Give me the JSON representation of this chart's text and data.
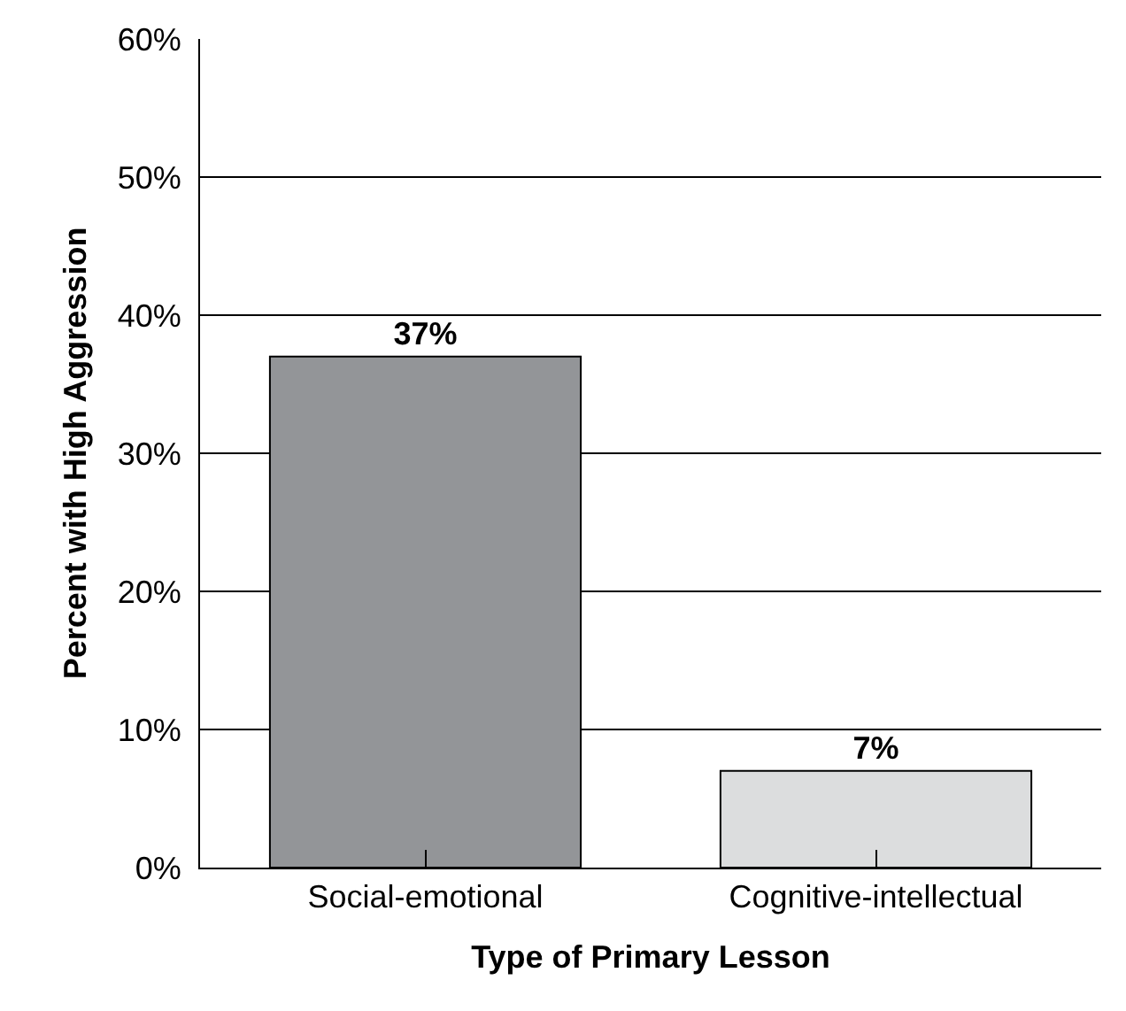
{
  "chart_data": {
    "type": "bar",
    "xlabel": "Type of Primary Lesson",
    "ylabel": "Percent with High Aggression",
    "categories": [
      "Social-emotional",
      "Cognitive-intellectual"
    ],
    "values": [
      37,
      7
    ],
    "colors": [
      "#939598",
      "#dcddde"
    ],
    "value_labels": [
      "37%",
      "7%"
    ],
    "ylim": [
      0,
      60
    ],
    "yticks": [
      {
        "value": 0,
        "label": "0%"
      },
      {
        "value": 10,
        "label": "10%"
      },
      {
        "value": 20,
        "label": "20%"
      },
      {
        "value": 30,
        "label": "30%"
      },
      {
        "value": 40,
        "label": "40%"
      },
      {
        "value": 50,
        "label": "50%"
      },
      {
        "value": 60,
        "label": "60%"
      }
    ],
    "grid": "y",
    "legend": false
  }
}
